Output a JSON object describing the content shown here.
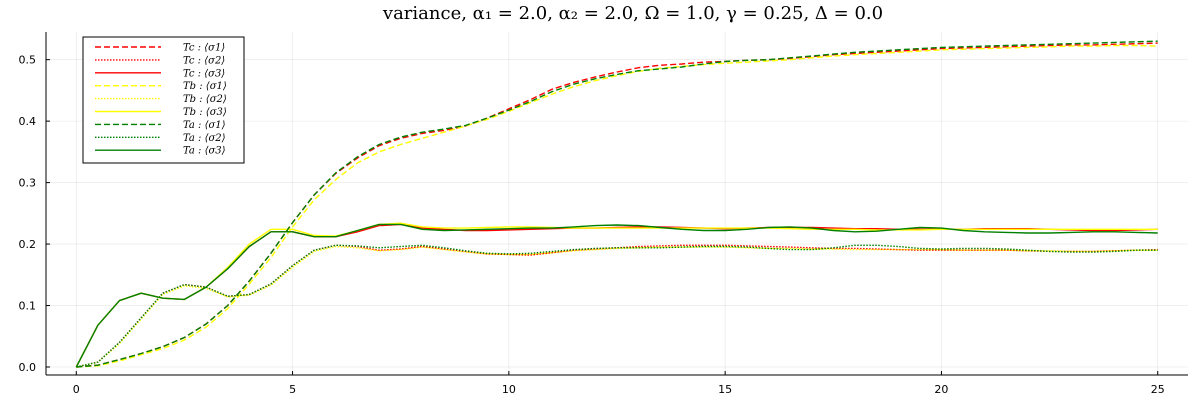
{
  "chart_data": {
    "type": "line",
    "title": "variance, α₁ = 2.0, α₂ = 2.0, Ω = 1.0, γ = 0.25, Δ = 0.0",
    "xlabel": "",
    "ylabel": "",
    "xlim": [
      -0.7,
      25.7
    ],
    "ylim": [
      -0.013,
      0.545
    ],
    "xticks": [
      0,
      5,
      10,
      15,
      20,
      25
    ],
    "yticks": [
      0.0,
      0.1,
      0.2,
      0.3,
      0.4,
      0.5
    ],
    "xtick_labels": [
      "0",
      "5",
      "10",
      "15",
      "20",
      "25"
    ],
    "ytick_labels": [
      "0.0",
      "0.1",
      "0.2",
      "0.3",
      "0.4",
      "0.5"
    ],
    "grid": true,
    "legend_position": "top-left",
    "x": [
      0,
      0.5,
      1,
      1.5,
      2,
      2.5,
      3,
      3.5,
      4,
      4.5,
      5,
      5.5,
      6,
      6.5,
      7,
      7.5,
      8,
      8.5,
      9,
      9.5,
      10,
      10.5,
      11,
      11.5,
      12,
      12.5,
      13,
      13.5,
      14,
      14.5,
      15,
      15.5,
      16,
      16.5,
      17,
      17.5,
      18,
      18.5,
      19,
      19.5,
      20,
      20.5,
      21,
      21.5,
      22,
      22.5,
      23,
      23.5,
      24,
      24.5,
      25
    ],
    "series": [
      {
        "name": "Tc : ⟨σ1⟩",
        "color": "#ff0000",
        "dash": "dashed",
        "values": [
          0,
          0.003,
          0.012,
          0.022,
          0.033,
          0.048,
          0.07,
          0.1,
          0.14,
          0.185,
          0.235,
          0.28,
          0.315,
          0.34,
          0.36,
          0.372,
          0.38,
          0.385,
          0.392,
          0.405,
          0.42,
          0.435,
          0.452,
          0.463,
          0.472,
          0.48,
          0.487,
          0.491,
          0.493,
          0.496,
          0.497,
          0.499,
          0.5,
          0.502,
          0.505,
          0.508,
          0.51,
          0.512,
          0.514,
          0.516,
          0.518,
          0.519,
          0.52,
          0.521,
          0.522,
          0.523,
          0.524,
          0.524,
          0.525,
          0.526,
          0.527
        ]
      },
      {
        "name": "Tc : ⟨σ2⟩",
        "color": "#ff0000",
        "dash": "dotted",
        "values": [
          0,
          0.008,
          0.04,
          0.08,
          0.12,
          0.134,
          0.13,
          0.115,
          0.118,
          0.135,
          0.165,
          0.19,
          0.198,
          0.196,
          0.19,
          0.192,
          0.196,
          0.192,
          0.188,
          0.184,
          0.183,
          0.182,
          0.186,
          0.19,
          0.192,
          0.194,
          0.196,
          0.197,
          0.198,
          0.198,
          0.198,
          0.197,
          0.196,
          0.195,
          0.194,
          0.193,
          0.193,
          0.192,
          0.191,
          0.19,
          0.19,
          0.19,
          0.19,
          0.19,
          0.189,
          0.188,
          0.188,
          0.188,
          0.189,
          0.19,
          0.191
        ]
      },
      {
        "name": "Tc : ⟨σ3⟩",
        "color": "#ff0000",
        "dash": "solid",
        "values": [
          0,
          0.068,
          0.108,
          0.12,
          0.112,
          0.11,
          0.13,
          0.16,
          0.196,
          0.22,
          0.22,
          0.212,
          0.212,
          0.22,
          0.23,
          0.232,
          0.226,
          0.224,
          0.222,
          0.222,
          0.223,
          0.224,
          0.225,
          0.226,
          0.226,
          0.227,
          0.228,
          0.228,
          0.227,
          0.226,
          0.225,
          0.226,
          0.227,
          0.227,
          0.227,
          0.226,
          0.225,
          0.225,
          0.224,
          0.224,
          0.224,
          0.224,
          0.225,
          0.225,
          0.225,
          0.224,
          0.223,
          0.222,
          0.222,
          0.223,
          0.224
        ]
      },
      {
        "name": "Tb : ⟨σ1⟩",
        "color": "#ffff00",
        "dash": "dashed",
        "values": [
          0,
          0.002,
          0.01,
          0.02,
          0.03,
          0.044,
          0.065,
          0.095,
          0.135,
          0.178,
          0.228,
          0.272,
          0.305,
          0.332,
          0.35,
          0.362,
          0.372,
          0.382,
          0.392,
          0.403,
          0.416,
          0.43,
          0.444,
          0.456,
          0.466,
          0.474,
          0.481,
          0.486,
          0.489,
          0.492,
          0.494,
          0.496,
          0.498,
          0.5,
          0.503,
          0.506,
          0.508,
          0.51,
          0.512,
          0.514,
          0.516,
          0.517,
          0.518,
          0.519,
          0.52,
          0.521,
          0.522,
          0.522,
          0.523,
          0.523,
          0.522
        ]
      },
      {
        "name": "Tb : ⟨σ2⟩",
        "color": "#ffff00",
        "dash": "dotted",
        "values": [
          0,
          0.008,
          0.038,
          0.078,
          0.118,
          0.132,
          0.128,
          0.114,
          0.117,
          0.133,
          0.162,
          0.188,
          0.196,
          0.194,
          0.189,
          0.191,
          0.195,
          0.191,
          0.187,
          0.184,
          0.183,
          0.183,
          0.186,
          0.189,
          0.191,
          0.193,
          0.194,
          0.195,
          0.195,
          0.195,
          0.195,
          0.194,
          0.193,
          0.193,
          0.192,
          0.192,
          0.191,
          0.191,
          0.191,
          0.191,
          0.191,
          0.19,
          0.19,
          0.19,
          0.189,
          0.189,
          0.188,
          0.188,
          0.189,
          0.19,
          0.19
        ]
      },
      {
        "name": "Tb : ⟨σ3⟩",
        "color": "#ffff00",
        "dash": "solid",
        "values": [
          0,
          0.068,
          0.108,
          0.12,
          0.112,
          0.11,
          0.13,
          0.162,
          0.2,
          0.224,
          0.224,
          0.214,
          0.213,
          0.222,
          0.232,
          0.234,
          0.228,
          0.226,
          0.226,
          0.227,
          0.228,
          0.228,
          0.227,
          0.226,
          0.226,
          0.226,
          0.226,
          0.226,
          0.226,
          0.226,
          0.226,
          0.226,
          0.226,
          0.225,
          0.224,
          0.224,
          0.224,
          0.223,
          0.223,
          0.223,
          0.224,
          0.224,
          0.224,
          0.224,
          0.224,
          0.224,
          0.224,
          0.224,
          0.224,
          0.224,
          0.224
        ]
      },
      {
        "name": "Ta : ⟨σ1⟩",
        "color": "#008000",
        "dash": "dashed",
        "values": [
          0,
          0.003,
          0.012,
          0.022,
          0.033,
          0.048,
          0.07,
          0.1,
          0.14,
          0.185,
          0.235,
          0.28,
          0.316,
          0.342,
          0.362,
          0.374,
          0.382,
          0.387,
          0.393,
          0.405,
          0.418,
          0.432,
          0.448,
          0.46,
          0.469,
          0.476,
          0.482,
          0.485,
          0.488,
          0.493,
          0.497,
          0.499,
          0.5,
          0.503,
          0.506,
          0.509,
          0.512,
          0.514,
          0.516,
          0.518,
          0.52,
          0.521,
          0.522,
          0.523,
          0.524,
          0.525,
          0.526,
          0.527,
          0.528,
          0.529,
          0.53
        ]
      },
      {
        "name": "Ta : ⟨σ2⟩",
        "color": "#008000",
        "dash": "dotted",
        "values": [
          0,
          0.008,
          0.04,
          0.08,
          0.12,
          0.134,
          0.13,
          0.115,
          0.118,
          0.135,
          0.165,
          0.19,
          0.198,
          0.197,
          0.194,
          0.196,
          0.198,
          0.194,
          0.189,
          0.185,
          0.184,
          0.185,
          0.188,
          0.191,
          0.193,
          0.194,
          0.194,
          0.194,
          0.195,
          0.196,
          0.196,
          0.195,
          0.193,
          0.191,
          0.191,
          0.194,
          0.198,
          0.198,
          0.196,
          0.193,
          0.192,
          0.193,
          0.193,
          0.192,
          0.19,
          0.188,
          0.187,
          0.187,
          0.188,
          0.19,
          0.19
        ]
      },
      {
        "name": "Ta : ⟨σ3⟩",
        "color": "#008000",
        "dash": "solid",
        "values": [
          0,
          0.068,
          0.108,
          0.12,
          0.112,
          0.11,
          0.13,
          0.16,
          0.196,
          0.22,
          0.22,
          0.212,
          0.212,
          0.222,
          0.232,
          0.232,
          0.224,
          0.222,
          0.223,
          0.224,
          0.225,
          0.226,
          0.226,
          0.228,
          0.23,
          0.231,
          0.23,
          0.227,
          0.224,
          0.222,
          0.222,
          0.224,
          0.227,
          0.228,
          0.226,
          0.222,
          0.22,
          0.221,
          0.224,
          0.227,
          0.226,
          0.222,
          0.22,
          0.219,
          0.218,
          0.218,
          0.219,
          0.22,
          0.22,
          0.219,
          0.218
        ]
      }
    ]
  }
}
